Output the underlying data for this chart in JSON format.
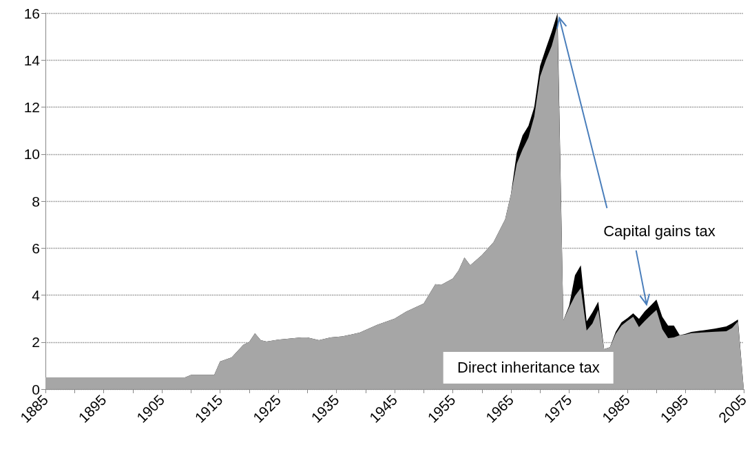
{
  "chart_data": {
    "type": "area",
    "stacked": true,
    "x": [
      1885,
      1909,
      1910,
      1914,
      1915,
      1917,
      1919,
      1920,
      1921,
      1922,
      1923,
      1925,
      1929,
      1930,
      1932,
      1934,
      1936,
      1939,
      1942,
      1945,
      1947,
      1950,
      1952,
      1953,
      1955,
      1956,
      1957,
      1958,
      1960,
      1962,
      1964,
      1965,
      1966,
      1967,
      1968,
      1969,
      1970,
      1971,
      1972,
      1973,
      1974,
      1975,
      1976,
      1977,
      1978,
      1979,
      1980,
      1981,
      1982,
      1983,
      1984,
      1985,
      1986,
      1987,
      1988,
      1989,
      1990,
      1991,
      1992,
      1993,
      1994,
      1995,
      1996,
      1998,
      2000,
      2002,
      2003,
      2004,
      2005
    ],
    "series": [
      {
        "name": "Direct inheritance tax",
        "color": "#a6a6a6",
        "values": [
          0.5,
          0.5,
          0.6,
          0.6,
          1.17,
          1.35,
          1.88,
          2.0,
          2.37,
          2.08,
          2.02,
          2.1,
          2.2,
          2.2,
          2.08,
          2.2,
          2.24,
          2.4,
          2.73,
          3.0,
          3.3,
          3.64,
          4.46,
          4.43,
          4.7,
          5.05,
          5.6,
          5.27,
          5.7,
          6.25,
          7.22,
          8.3,
          9.6,
          10.2,
          10.7,
          11.6,
          13.3,
          14.0,
          14.6,
          15.5,
          2.93,
          3.47,
          3.96,
          4.3,
          2.49,
          2.79,
          3.37,
          1.7,
          1.78,
          2.35,
          2.7,
          2.9,
          3.08,
          2.64,
          2.9,
          3.14,
          3.37,
          2.55,
          2.17,
          2.2,
          2.29,
          2.32,
          2.38,
          2.41,
          2.44,
          2.46,
          2.6,
          2.88,
          0
        ]
      },
      {
        "name": "Capital gains tax",
        "color": "#000000",
        "values": [
          0,
          0,
          0,
          0,
          0,
          0,
          0,
          0,
          0,
          0,
          0,
          0,
          0,
          0,
          0,
          0,
          0,
          0,
          0,
          0,
          0,
          0,
          0,
          0,
          0,
          0,
          0,
          0,
          0,
          0,
          0,
          0,
          0.45,
          0.6,
          0.5,
          0.4,
          0.45,
          0.5,
          0.6,
          0.5,
          0,
          0.08,
          0.88,
          0.97,
          0.39,
          0.48,
          0.35,
          0,
          0,
          0.09,
          0.14,
          0.12,
          0.14,
          0.35,
          0.41,
          0.41,
          0.44,
          0.53,
          0.53,
          0.5,
          0,
          0.03,
          0.05,
          0.09,
          0.13,
          0.21,
          0.2,
          0.08,
          0
        ]
      }
    ],
    "xlim": [
      1885,
      2005
    ],
    "xticks": [
      1885,
      {
        "value": 1890,
        "label": null
      },
      1895,
      {
        "value": 1900,
        "label": null
      },
      1905,
      {
        "value": 1910,
        "label": null
      },
      1915,
      {
        "value": 1920,
        "label": null
      },
      1925,
      {
        "value": 1930,
        "label": null
      },
      1935,
      {
        "value": 1940,
        "label": null
      },
      1945,
      {
        "value": 1950,
        "label": null
      },
      1955,
      {
        "value": 1960,
        "label": null
      },
      1965,
      {
        "value": 1970,
        "label": null
      },
      1975,
      {
        "value": 1980,
        "label": null
      },
      1985,
      {
        "value": 1990,
        "label": null
      },
      1995,
      {
        "value": 2000,
        "label": null
      },
      2005
    ],
    "ylim": [
      0,
      16
    ],
    "yticks": [
      0,
      2,
      4,
      6,
      8,
      10,
      12,
      14,
      16
    ],
    "grid": "y"
  }
}
